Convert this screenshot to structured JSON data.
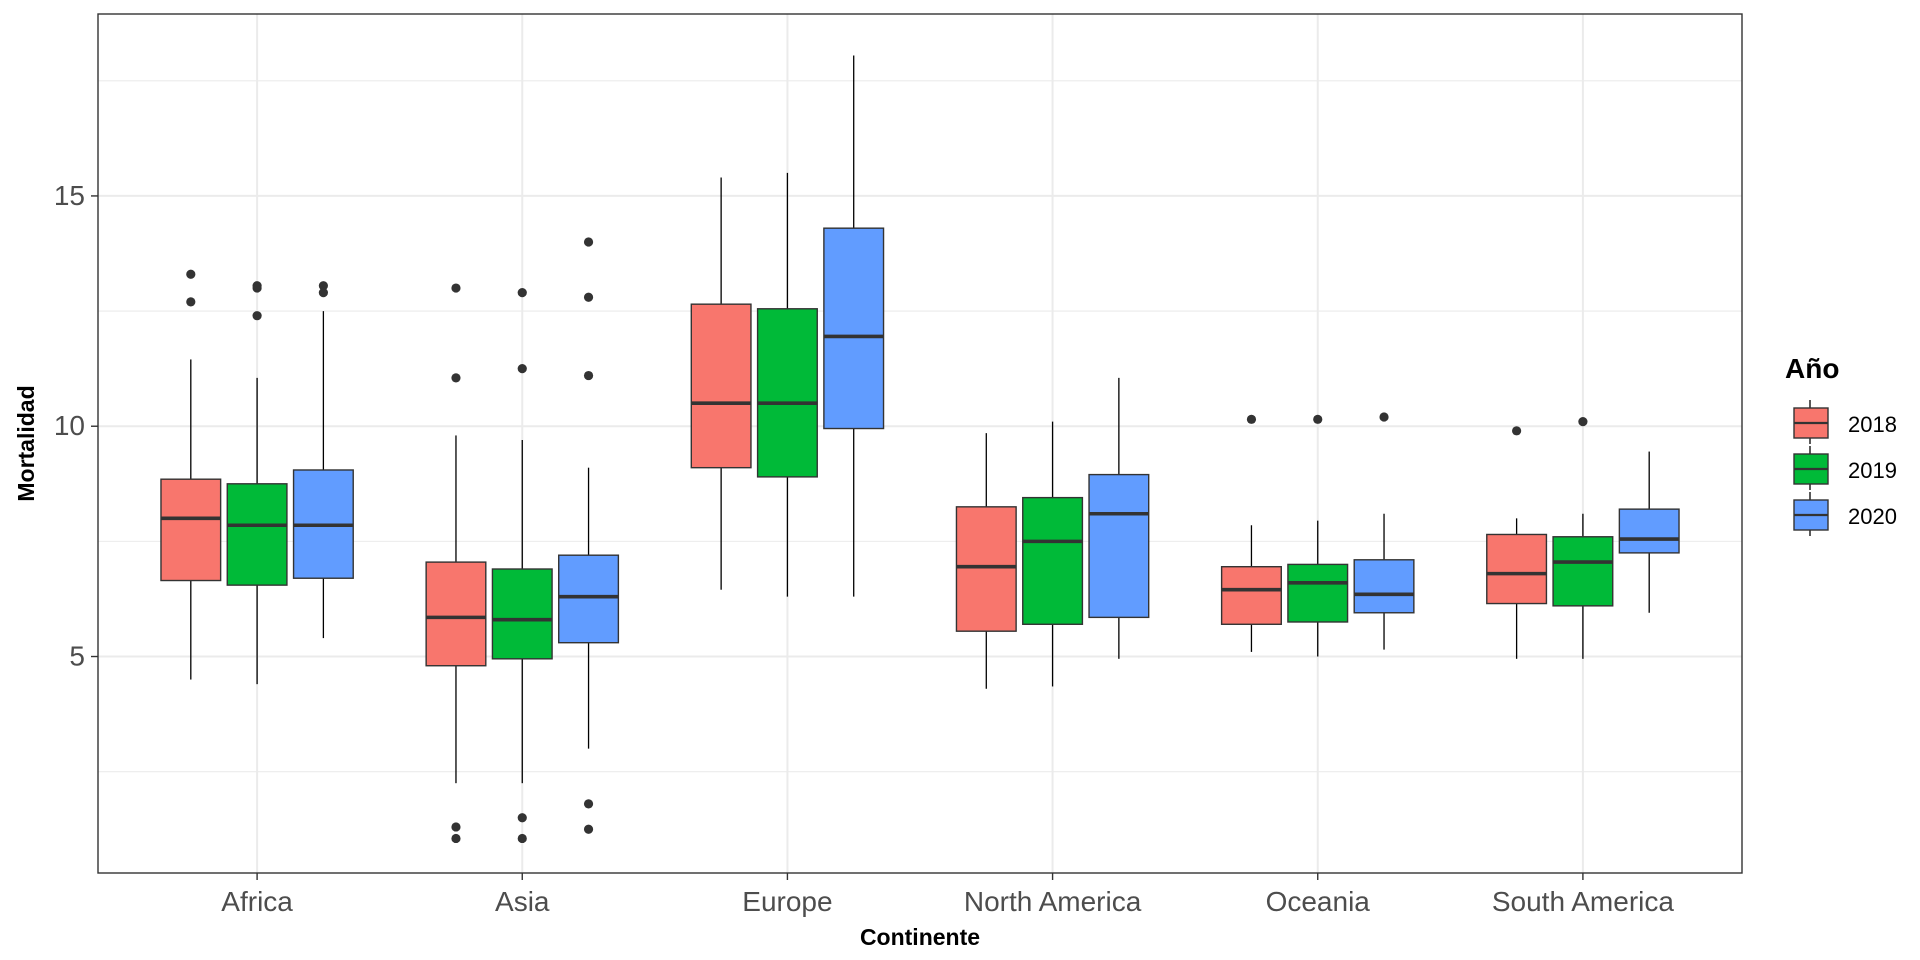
{
  "chart_data": {
    "type": "boxplot",
    "title": "",
    "xlabel": "Continente",
    "ylabel": "Mortalidad",
    "ylim": [
      0.3,
      18.95
    ],
    "yticks": [
      5,
      10,
      15
    ],
    "ytick_labels": [
      "5",
      "10",
      "15"
    ],
    "grid": true,
    "legend_position": "right",
    "legend_title": "Año",
    "categories": [
      "Africa",
      "Asia",
      "Europe",
      "North America",
      "Oceania",
      "South America"
    ],
    "series": [
      {
        "name": "2018",
        "color": "#F8766D",
        "boxes": [
          {
            "lower": 4.5,
            "q1": 6.65,
            "median": 8.0,
            "q3": 8.85,
            "upper": 11.45,
            "outliers": [
              12.7,
              13.3
            ]
          },
          {
            "lower": 2.25,
            "q1": 4.8,
            "median": 5.85,
            "q3": 7.05,
            "upper": 9.8,
            "outliers": [
              1.05,
              1.3,
              11.05,
              13.0
            ]
          },
          {
            "lower": 6.45,
            "q1": 9.1,
            "median": 10.5,
            "q3": 12.65,
            "upper": 15.4,
            "outliers": []
          },
          {
            "lower": 4.3,
            "q1": 5.55,
            "median": 6.95,
            "q3": 8.25,
            "upper": 9.85,
            "outliers": []
          },
          {
            "lower": 5.1,
            "q1": 5.7,
            "median": 6.45,
            "q3": 6.95,
            "upper": 7.85,
            "outliers": [
              10.15
            ]
          },
          {
            "lower": 4.95,
            "q1": 6.15,
            "median": 6.8,
            "q3": 7.65,
            "upper": 8.0,
            "outliers": [
              9.9
            ]
          }
        ]
      },
      {
        "name": "2019",
        "color": "#00BA38",
        "boxes": [
          {
            "lower": 4.4,
            "q1": 6.55,
            "median": 7.85,
            "q3": 8.75,
            "upper": 11.05,
            "outliers": [
              12.4,
              13.0,
              13.05
            ]
          },
          {
            "lower": 2.25,
            "q1": 4.95,
            "median": 5.8,
            "q3": 6.9,
            "upper": 9.7,
            "outliers": [
              1.05,
              1.5,
              11.25,
              12.9
            ]
          },
          {
            "lower": 6.3,
            "q1": 8.9,
            "median": 10.5,
            "q3": 12.55,
            "upper": 15.5,
            "outliers": []
          },
          {
            "lower": 4.35,
            "q1": 5.7,
            "median": 7.5,
            "q3": 8.45,
            "upper": 10.1,
            "outliers": []
          },
          {
            "lower": 5.0,
            "q1": 5.75,
            "median": 6.6,
            "q3": 7.0,
            "upper": 7.95,
            "outliers": [
              10.15
            ]
          },
          {
            "lower": 4.95,
            "q1": 6.1,
            "median": 7.05,
            "q3": 7.6,
            "upper": 8.1,
            "outliers": [
              10.1
            ]
          }
        ]
      },
      {
        "name": "2020",
        "color": "#619CFF",
        "boxes": [
          {
            "lower": 5.4,
            "q1": 6.7,
            "median": 7.85,
            "q3": 9.05,
            "upper": 12.5,
            "outliers": [
              12.9,
              13.05
            ]
          },
          {
            "lower": 3.0,
            "q1": 5.3,
            "median": 6.3,
            "q3": 7.2,
            "upper": 9.1,
            "outliers": [
              1.25,
              1.8,
              11.1,
              12.8,
              14.0
            ]
          },
          {
            "lower": 6.3,
            "q1": 9.95,
            "median": 11.95,
            "q3": 14.3,
            "upper": 18.05,
            "outliers": []
          },
          {
            "lower": 4.95,
            "q1": 5.85,
            "median": 8.1,
            "q3": 8.95,
            "upper": 11.05,
            "outliers": []
          },
          {
            "lower": 5.15,
            "q1": 5.95,
            "median": 6.35,
            "q3": 7.1,
            "upper": 8.1,
            "outliers": [
              10.2
            ]
          },
          {
            "lower": 5.95,
            "q1": 7.25,
            "median": 7.55,
            "q3": 8.2,
            "upper": 9.45,
            "outliers": []
          }
        ]
      }
    ]
  }
}
